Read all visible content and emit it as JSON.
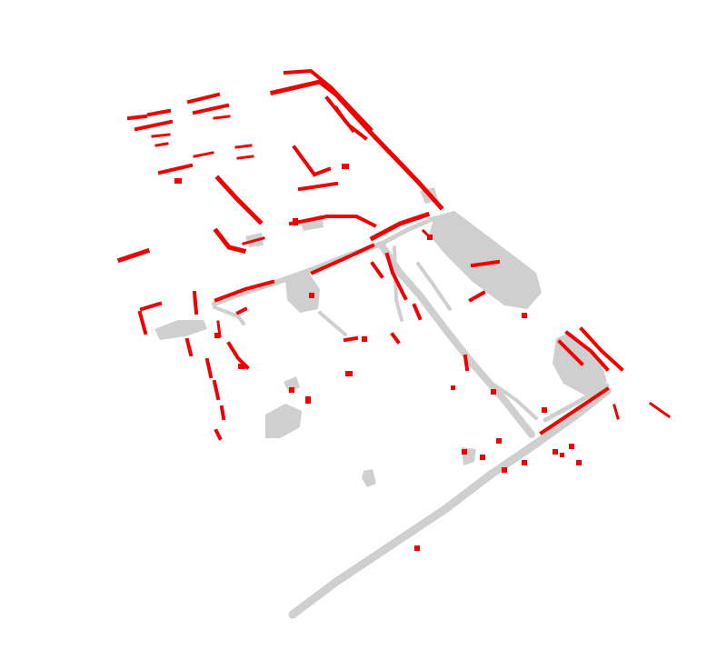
{
  "scene": {
    "description_name": "point-cloud-map-view",
    "colors": {
      "background": "#ffffff",
      "map_points": "#cfcfcf",
      "highlighted_points": "#f00000"
    }
  }
}
